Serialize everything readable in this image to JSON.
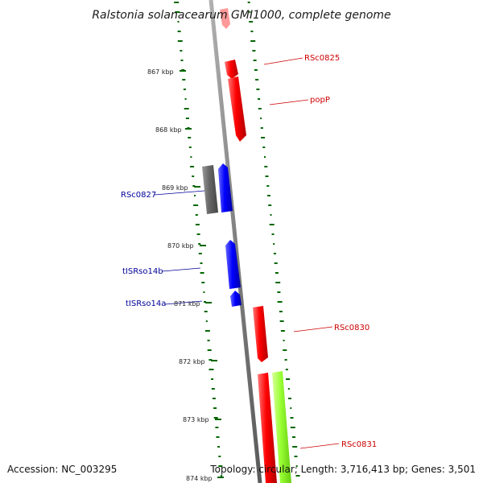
{
  "title": "Ralstonia solanacearum GMI1000, complete genome",
  "footer": {
    "accession": "Accession: NC_003295",
    "topology": "Topology: circular; Length: 3,716,413 bp; Genes: 3,501"
  },
  "ticks": [
    "867 kbp",
    "868 kbp",
    "869 kbp",
    "870 kbp",
    "871 kbp",
    "872 kbp",
    "873 kbp",
    "874 kbp"
  ],
  "gene_labels": {
    "rsc0825": "RSc0825",
    "popP": "popP",
    "rsc0827": "RSc0827",
    "tISRso14b": "tISRso14b",
    "tISRso14a": "tISRso14a",
    "rsc0830": "RSc0830",
    "rsc0831": "RSc0831"
  },
  "colors": {
    "forward_gene": "#ff0000",
    "reverse_gene": "#0000ff",
    "other_gene": "#666666",
    "other_feature": "#99ff33",
    "backbone": "#808080",
    "gc_dots": "#006600"
  }
}
